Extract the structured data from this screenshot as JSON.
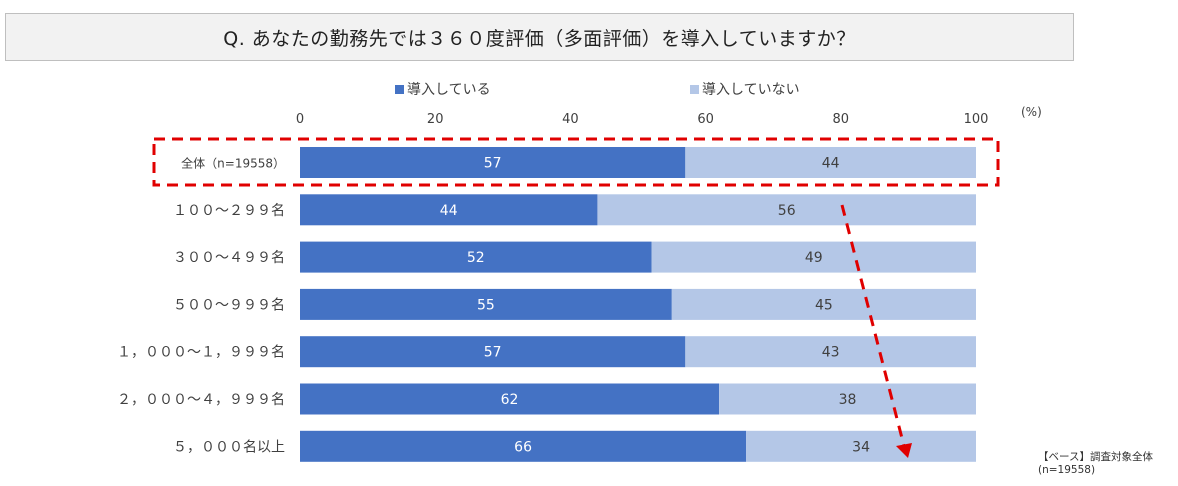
{
  "title": "Q. あなたの勤務先では３６０度評価（多面評価）を導入していますか？",
  "chart_data": {
    "type": "bar",
    "orientation": "horizontal",
    "stacked": true,
    "title": "Q. あなたの勤務先では３６０度評価（多面評価）を導入していますか？",
    "unit_label": "(%)",
    "xlim": [
      0,
      100
    ],
    "ticks": [
      0,
      20,
      40,
      60,
      80,
      100
    ],
    "categories": [
      "全体（n=19558）",
      "１００〜２９９名",
      "３００〜４９９名",
      "５００〜９９９名",
      "１，０００〜１，９９９名",
      "２，０００〜４，９９９名",
      "５，０００名以上"
    ],
    "series": [
      {
        "name": "導入している",
        "color": "#4472c4",
        "label_color": "#ffffff",
        "values": [
          57,
          44,
          52,
          55,
          57,
          62,
          66
        ]
      },
      {
        "name": "導入していない",
        "color": "#b4c7e7",
        "label_color": "#404040",
        "values": [
          44,
          56,
          49,
          45,
          43,
          38,
          34
        ]
      }
    ],
    "legend_position": "top",
    "highlight": {
      "category": "全体（n=19558）",
      "style": "dashed-box",
      "color": "#e00000"
    },
    "annotation": {
      "type": "dashed-arrow",
      "color": "#e00000",
      "description": "trend: adoption rises with company size"
    }
  },
  "note": {
    "line1": "【ベース】調査対象全体",
    "line2": "(n=19558)"
  }
}
